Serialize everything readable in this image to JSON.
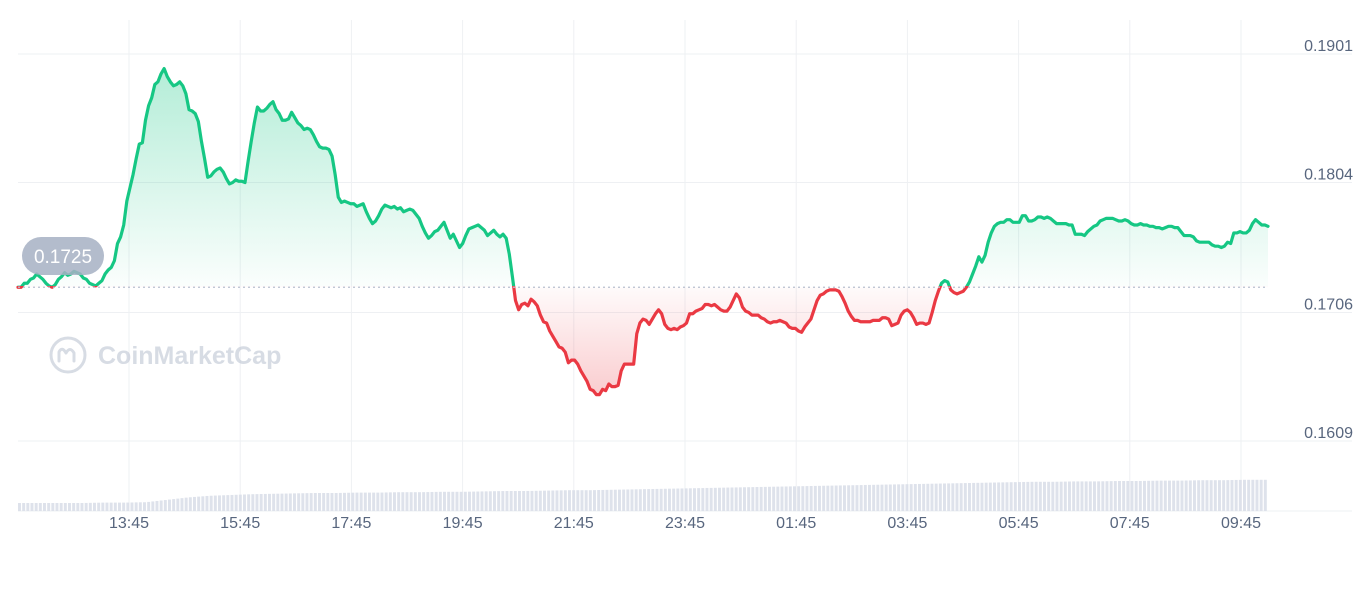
{
  "watermark": {
    "text": "CoinMarketCap",
    "icon": "coinmarketcap-logo-icon"
  },
  "current_price_label": "0.1725",
  "chart_data": {
    "type": "area",
    "title": "",
    "xlabel": "",
    "ylabel": "",
    "x_ticks": [
      "13:45",
      "15:45",
      "17:45",
      "19:45",
      "21:45",
      "23:45",
      "01:45",
      "03:45",
      "05:45",
      "07:45",
      "09:45"
    ],
    "y_ticks": [
      "0.1901",
      "0.1804",
      "0.1706",
      "0.1609"
    ],
    "ylim": [
      0.1609,
      0.1901
    ],
    "grid": true,
    "reference_price": 0.1725,
    "colors": {
      "up": "#16c784",
      "down": "#ea3943",
      "grid": "#eef0f3",
      "axis_text": "#58667e",
      "badge": "#a6b0c3",
      "volume": "#d8dde8"
    },
    "series": [
      {
        "values": [
          0.1725,
          0.1725,
          0.1728,
          0.1728,
          0.1731,
          0.1732,
          0.1735,
          0.1733,
          0.1731,
          0.1728,
          0.1726,
          0.1725,
          0.1727,
          0.1731,
          0.1733,
          0.1736,
          0.1734,
          0.1735,
          0.1737,
          0.1736,
          0.1735,
          0.1732,
          0.1731,
          0.1728,
          0.1727,
          0.1726,
          0.1728,
          0.173,
          0.1735,
          0.1738,
          0.174,
          0.1745,
          0.1758,
          0.1763,
          0.1772,
          0.179,
          0.18,
          0.181,
          0.1822,
          0.1833,
          0.1834,
          0.1851,
          0.1862,
          0.1868,
          0.1878,
          0.188,
          0.1886,
          0.189,
          0.1884,
          0.188,
          0.1877,
          0.1878,
          0.188,
          0.1877,
          0.1871,
          0.1859,
          0.1858,
          0.1856,
          0.185,
          0.1835,
          0.1822,
          0.1808,
          0.1809,
          0.1812,
          0.1814,
          0.1815,
          0.1812,
          0.1807,
          0.1803,
          0.1804,
          0.1806,
          0.1805,
          0.1805,
          0.1804,
          0.182,
          0.1835,
          0.1849,
          0.1861,
          0.1858,
          0.1858,
          0.186,
          0.1863,
          0.1865,
          0.1859,
          0.1856,
          0.1851,
          0.1851,
          0.1852,
          0.1857,
          0.1853,
          0.1849,
          0.1847,
          0.1844,
          0.1845,
          0.1844,
          0.184,
          0.1835,
          0.1831,
          0.183,
          0.183,
          0.1829,
          0.1824,
          0.181,
          0.1793,
          0.1789,
          0.179,
          0.1789,
          0.1788,
          0.1788,
          0.1786,
          0.1787,
          0.1788,
          0.1782,
          0.1777,
          0.1773,
          0.1775,
          0.1779,
          0.1784,
          0.1787,
          0.1786,
          0.1785,
          0.1786,
          0.1784,
          0.1785,
          0.1782,
          0.1783,
          0.1784,
          0.1783,
          0.178,
          0.1777,
          0.1771,
          0.1766,
          0.1762,
          0.1764,
          0.1767,
          0.1768,
          0.1771,
          0.1774,
          0.1768,
          0.1762,
          0.1765,
          0.176,
          0.1755,
          0.1758,
          0.1764,
          0.1769,
          0.177,
          0.1771,
          0.1772,
          0.177,
          0.1768,
          0.1764,
          0.1766,
          0.1768,
          0.1765,
          0.1763,
          0.1765,
          0.1762,
          0.175,
          0.1733,
          0.1715,
          0.1708,
          0.1712,
          0.1713,
          0.1711,
          0.1716,
          0.1714,
          0.1711,
          0.1704,
          0.1699,
          0.1698,
          0.1692,
          0.1688,
          0.1684,
          0.168,
          0.1679,
          0.1676,
          0.1668,
          0.167,
          0.167,
          0.1667,
          0.1662,
          0.1658,
          0.1654,
          0.1648,
          0.1647,
          0.1644,
          0.1644,
          0.1648,
          0.1647,
          0.1652,
          0.165,
          0.165,
          0.1651,
          0.1662,
          0.1667,
          0.1667,
          0.1667,
          0.1667,
          0.169,
          0.1698,
          0.1701,
          0.17,
          0.1697,
          0.1701,
          0.1705,
          0.1708,
          0.1705,
          0.1697,
          0.1694,
          0.1693,
          0.1694,
          0.1693,
          0.1695,
          0.1696,
          0.1698,
          0.1705,
          0.1705,
          0.1707,
          0.1708,
          0.1709,
          0.1712,
          0.1712,
          0.1711,
          0.1712,
          0.171,
          0.1708,
          0.1707,
          0.1707,
          0.171,
          0.1715,
          0.172,
          0.1717,
          0.171,
          0.1707,
          0.1706,
          0.1704,
          0.1704,
          0.1704,
          0.1702,
          0.1701,
          0.1699,
          0.1698,
          0.1699,
          0.1699,
          0.17,
          0.1699,
          0.1698,
          0.1695,
          0.1694,
          0.1694,
          0.1692,
          0.1691,
          0.1695,
          0.1698,
          0.1701,
          0.1708,
          0.1715,
          0.1719,
          0.172,
          0.1722,
          0.1723,
          0.1723,
          0.1723,
          0.1722,
          0.1718,
          0.1713,
          0.1707,
          0.1703,
          0.17,
          0.17,
          0.1699,
          0.1699,
          0.1699,
          0.1699,
          0.17,
          0.17,
          0.17,
          0.1702,
          0.1702,
          0.1701,
          0.1696,
          0.1697,
          0.1698,
          0.1704,
          0.1707,
          0.1708,
          0.1706,
          0.1702,
          0.1697,
          0.1698,
          0.1698,
          0.1697,
          0.1698,
          0.1706,
          0.1715,
          0.1722,
          0.1728,
          0.173,
          0.1729,
          0.1723,
          0.1721,
          0.172,
          0.1721,
          0.1722,
          0.1725,
          0.1729,
          0.1735,
          0.1741,
          0.1748,
          0.1744,
          0.1749,
          0.1759,
          0.1766,
          0.1771,
          0.1773,
          0.1774,
          0.1774,
          0.1776,
          0.1776,
          0.1774,
          0.1774,
          0.1774,
          0.1779,
          0.1779,
          0.1775,
          0.1775,
          0.1776,
          0.1778,
          0.1778,
          0.1777,
          0.1778,
          0.1777,
          0.1775,
          0.1773,
          0.1773,
          0.1773,
          0.1773,
          0.1772,
          0.1772,
          0.1765,
          0.1765,
          0.1765,
          0.1764,
          0.1767,
          0.1769,
          0.1771,
          0.1772,
          0.1775,
          0.1776,
          0.1777,
          0.1777,
          0.1777,
          0.1776,
          0.1775,
          0.1775,
          0.1776,
          0.1775,
          0.1773,
          0.1772,
          0.1772,
          0.1773,
          0.1772,
          0.1772,
          0.1771,
          0.1771,
          0.177,
          0.177,
          0.1769,
          0.177,
          0.1771,
          0.1771,
          0.177,
          0.177,
          0.1767,
          0.1764,
          0.1764,
          0.1764,
          0.1763,
          0.176,
          0.1759,
          0.1759,
          0.1759,
          0.1759,
          0.1757,
          0.1756,
          0.1756,
          0.1755,
          0.1756,
          0.1759,
          0.1758,
          0.1766,
          0.1766,
          0.1767,
          0.1766,
          0.1766,
          0.1768,
          0.1773,
          0.1776,
          0.1774,
          0.1772,
          0.1772,
          0.1771
        ]
      }
    ],
    "volume_relative": [
      0.2,
      0.2,
      0.2,
      0.2,
      0.21,
      0.21,
      0.22,
      0.28,
      0.34,
      0.38,
      0.4,
      0.42,
      0.43,
      0.44,
      0.45,
      0.45,
      0.46,
      0.46,
      0.47,
      0.47,
      0.48,
      0.48,
      0.49,
      0.5,
      0.5,
      0.51,
      0.52,
      0.52,
      0.53,
      0.54,
      0.55,
      0.56,
      0.57,
      0.58,
      0.59,
      0.6,
      0.61,
      0.62,
      0.63,
      0.64,
      0.65,
      0.66,
      0.67,
      0.68,
      0.69,
      0.7,
      0.71,
      0.72,
      0.73,
      0.73,
      0.74,
      0.74,
      0.75,
      0.75,
      0.76,
      0.76,
      0.77,
      0.77,
      0.78,
      0.78
    ]
  }
}
